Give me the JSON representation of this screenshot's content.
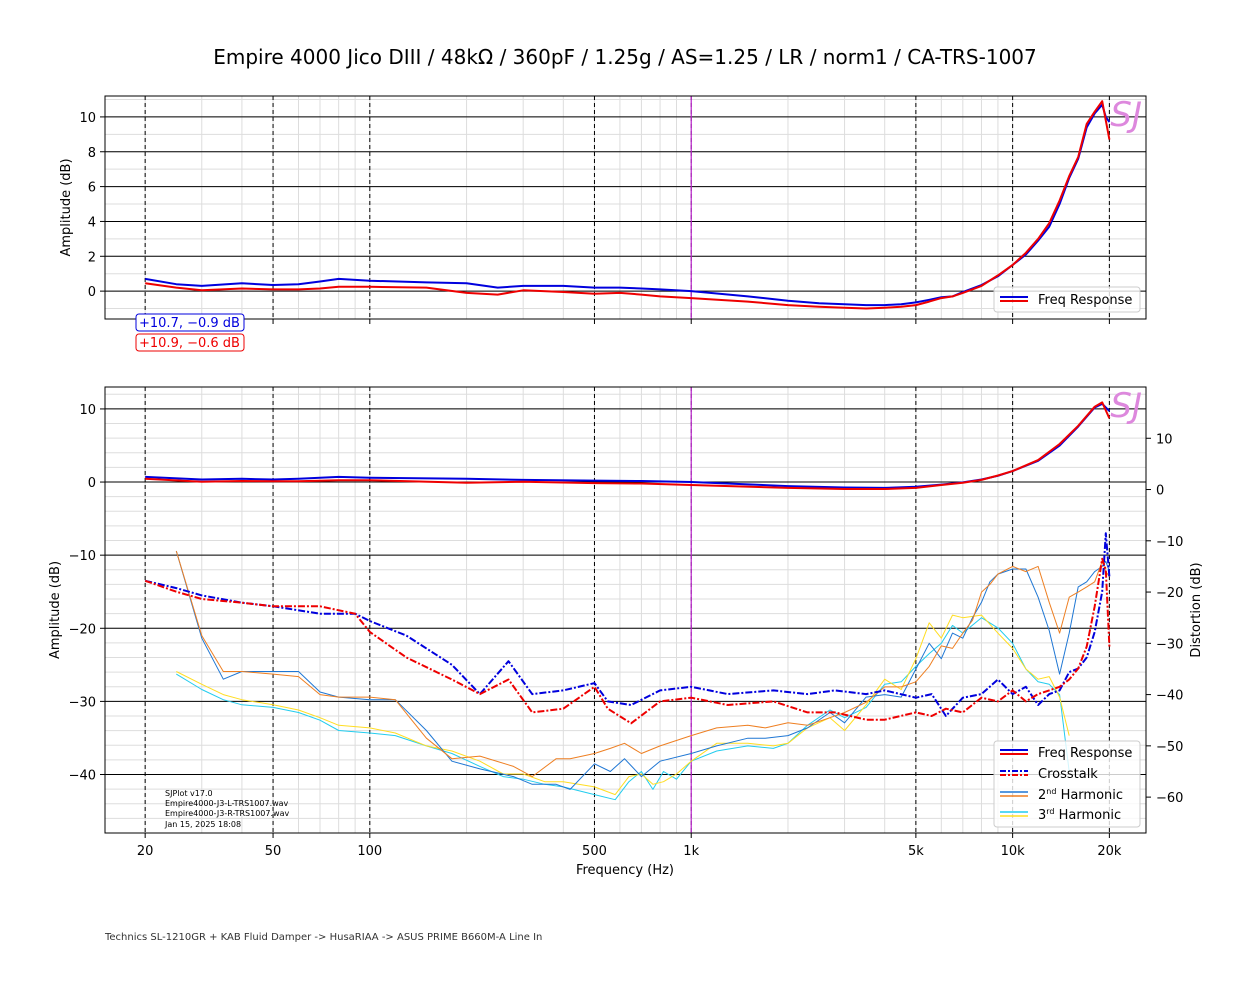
{
  "title": "Empire 4000 Jico DIII / 48kΩ / 360pF / 1.25g / AS=1.25 / LR / norm1 / CA-TRS-1007",
  "footer": "Technics SL-1210GR + KAB Fluid Damper -> HusaRIAA -> ASUS PRIME B660M-A Line In",
  "watermark": "SJ",
  "info": [
    "SJPlot v17.0",
    "Empire4000-J3-L-TRS1007.wav",
    "Empire4000-J3-R-TRS1007.wav",
    "Jan 15, 2025 18:08"
  ],
  "colors": {
    "left": "#0000dd",
    "right": "#ee0000",
    "h2_left": "#1f77d4",
    "h2_right": "#ee7f22",
    "h3_left": "#22ccee",
    "h3_right": "#ffdd22",
    "marker": "#bb22cc",
    "watermark": "#dd88dd"
  },
  "chart_data": [
    {
      "type": "line",
      "ylabel": "Amplitude (dB)",
      "xscale": "log",
      "xlim": [
        15,
        26000
      ],
      "ylim": [
        -1.6,
        11.2
      ],
      "yticks": [
        0,
        2,
        4,
        6,
        8,
        10
      ],
      "xticks": [
        20,
        50,
        100,
        500,
        1000,
        5000,
        10000,
        20000
      ],
      "xtick_labels": [
        "20",
        "50",
        "100",
        "500",
        "1k",
        "5k",
        "10k",
        "20k"
      ],
      "marker_x": 1000,
      "legend": [
        "Freq Response"
      ],
      "legend_position": "lower-right",
      "peak_labels": [
        "+10.7, −0.9 dB",
        "+10.9, −0.6 dB"
      ],
      "series": [
        {
          "name": "Freq Response",
          "channel": "L",
          "x": [
            20,
            25,
            30,
            40,
            50,
            60,
            70,
            80,
            100,
            150,
            200,
            250,
            300,
            400,
            500,
            600,
            700,
            800,
            1000,
            1500,
            2000,
            2500,
            3000,
            3500,
            4000,
            4500,
            5000,
            5500,
            6000,
            6500,
            7000,
            8000,
            9000,
            10000,
            11000,
            12000,
            13000,
            14000,
            15000,
            16000,
            17000,
            18000,
            19000,
            19500,
            20000
          ],
          "y": [
            0.7,
            0.4,
            0.3,
            0.45,
            0.35,
            0.4,
            0.55,
            0.7,
            0.6,
            0.5,
            0.45,
            0.2,
            0.3,
            0.3,
            0.2,
            0.2,
            0.15,
            0.1,
            0.0,
            -0.3,
            -0.55,
            -0.7,
            -0.75,
            -0.8,
            -0.8,
            -0.75,
            -0.65,
            -0.5,
            -0.35,
            -0.3,
            -0.05,
            0.35,
            0.85,
            1.5,
            2.1,
            2.9,
            3.7,
            5.0,
            6.5,
            7.6,
            9.4,
            10.2,
            10.7,
            10.0,
            9.7
          ]
        },
        {
          "name": "Freq Response",
          "channel": "R",
          "x": [
            20,
            25,
            30,
            40,
            50,
            60,
            70,
            80,
            100,
            150,
            200,
            250,
            300,
            400,
            500,
            600,
            700,
            800,
            1000,
            1500,
            2000,
            2500,
            3000,
            3500,
            4000,
            4500,
            5000,
            5500,
            6000,
            6500,
            7000,
            8000,
            9000,
            10000,
            11000,
            12000,
            13000,
            14000,
            15000,
            16000,
            17000,
            18000,
            19000,
            19500,
            20000
          ],
          "y": [
            0.45,
            0.2,
            0.05,
            0.15,
            0.1,
            0.1,
            0.15,
            0.25,
            0.25,
            0.2,
            -0.1,
            -0.2,
            0.05,
            -0.05,
            -0.15,
            -0.1,
            -0.2,
            -0.3,
            -0.4,
            -0.6,
            -0.8,
            -0.9,
            -0.95,
            -1.0,
            -0.95,
            -0.9,
            -0.8,
            -0.6,
            -0.4,
            -0.3,
            -0.1,
            0.3,
            0.9,
            1.5,
            2.2,
            3.0,
            3.9,
            5.2,
            6.6,
            7.7,
            9.6,
            10.3,
            10.9,
            9.8,
            8.7
          ]
        }
      ]
    },
    {
      "type": "line",
      "ylabel": "Amplitude (dB)",
      "y2label": "Distortion (dB)",
      "xlabel": "Frequency (Hz)",
      "xscale": "log",
      "xlim": [
        15,
        26000
      ],
      "ylim": [
        -48,
        13
      ],
      "yticks": [
        -40,
        -30,
        -20,
        -10,
        0,
        10
      ],
      "y2lim": [
        -67,
        20
      ],
      "y2ticks": [
        -60,
        -50,
        -40,
        -30,
        -20,
        -10,
        0,
        10
      ],
      "xticks": [
        20,
        50,
        100,
        500,
        1000,
        5000,
        10000,
        20000
      ],
      "xtick_labels": [
        "20",
        "50",
        "100",
        "500",
        "1k",
        "5k",
        "10k",
        "20k"
      ],
      "marker_x": 1000,
      "legend": [
        "Freq Response",
        "Crosstalk",
        "2nd Harmonic",
        "3rd Harmonic"
      ],
      "legend_position": "lower-right",
      "series": [
        {
          "name": "Freq Response",
          "channel": "L",
          "axis": "left",
          "x": [
            20,
            30,
            40,
            50,
            60,
            80,
            100,
            200,
            300,
            500,
            700,
            1000,
            2000,
            3000,
            4000,
            5000,
            6000,
            7000,
            8000,
            9000,
            10000,
            12000,
            14000,
            16000,
            18000,
            19000,
            20000
          ],
          "y": [
            0.7,
            0.35,
            0.45,
            0.35,
            0.45,
            0.7,
            0.6,
            0.45,
            0.3,
            0.2,
            0.15,
            0.0,
            -0.55,
            -0.75,
            -0.8,
            -0.65,
            -0.35,
            -0.05,
            0.35,
            0.85,
            1.5,
            2.9,
            5.0,
            7.6,
            10.2,
            10.7,
            9.7
          ]
        },
        {
          "name": "Freq Response",
          "channel": "R",
          "axis": "left",
          "x": [
            20,
            30,
            40,
            50,
            60,
            80,
            100,
            200,
            300,
            500,
            700,
            1000,
            2000,
            3000,
            4000,
            5000,
            6000,
            7000,
            8000,
            9000,
            10000,
            12000,
            14000,
            16000,
            18000,
            19000,
            20000
          ],
          "y": [
            0.45,
            0.05,
            0.15,
            0.1,
            0.1,
            0.25,
            0.25,
            -0.1,
            0.05,
            -0.15,
            -0.2,
            -0.4,
            -0.8,
            -0.95,
            -0.95,
            -0.8,
            -0.4,
            -0.1,
            0.3,
            0.9,
            1.5,
            3.0,
            5.2,
            7.7,
            10.3,
            10.9,
            8.7
          ]
        },
        {
          "name": "Crosstalk",
          "channel": "L",
          "axis": "left",
          "x": [
            20,
            25,
            30,
            40,
            50,
            70,
            90,
            100,
            130,
            180,
            220,
            270,
            320,
            400,
            500,
            550,
            650,
            800,
            1000,
            1300,
            1800,
            2300,
            2800,
            3500,
            4000,
            5000,
            5600,
            6200,
            7000,
            8000,
            9000,
            10000,
            11000,
            12000,
            13000,
            14000,
            15000,
            16000,
            17000,
            18000,
            19000,
            19500,
            20000
          ],
          "y": [
            -13.5,
            -14.5,
            -15.5,
            -16.5,
            -17,
            -18,
            -18,
            -19,
            -21,
            -25,
            -29,
            -24.5,
            -29,
            -28.5,
            -27.5,
            -30,
            -30.5,
            -28.5,
            -28,
            -29,
            -28.5,
            -29,
            -28.5,
            -29,
            -28.5,
            -29.5,
            -29,
            -32,
            -29.5,
            -29,
            -27,
            -29,
            -28,
            -30.5,
            -29,
            -28.5,
            -26,
            -25.5,
            -24,
            -20.5,
            -15,
            -7,
            -13
          ]
        },
        {
          "name": "Crosstalk",
          "channel": "R",
          "axis": "left",
          "x": [
            20,
            25,
            30,
            40,
            50,
            70,
            90,
            100,
            130,
            180,
            220,
            270,
            320,
            400,
            500,
            550,
            650,
            800,
            1000,
            1300,
            1800,
            2300,
            2800,
            3500,
            4000,
            5000,
            5600,
            6200,
            7000,
            8000,
            9000,
            10000,
            11000,
            12000,
            13000,
            14000,
            15000,
            16000,
            17000,
            18000,
            19000,
            19500,
            20000
          ],
          "y": [
            -13.5,
            -15,
            -16,
            -16.5,
            -17,
            -17,
            -18,
            -20.5,
            -24,
            -27,
            -29,
            -27,
            -31.5,
            -31,
            -28,
            -31,
            -33,
            -30,
            -29.5,
            -30.5,
            -30,
            -31.5,
            -31.5,
            -32.5,
            -32.5,
            -31.5,
            -32,
            -31,
            -31.5,
            -29.5,
            -30,
            -28.5,
            -30,
            -29,
            -28.5,
            -28,
            -27,
            -25.5,
            -22.5,
            -17,
            -10.5,
            -12,
            -22.5
          ]
        },
        {
          "name": "2nd Harmonic",
          "channel": "L",
          "axis": "right",
          "x": [
            25,
            30,
            35,
            40,
            50,
            60,
            70,
            80,
            100,
            120,
            150,
            180,
            220,
            280,
            320,
            380,
            420,
            500,
            560,
            620,
            700,
            800,
            1000,
            1200,
            1500,
            1700,
            2000,
            2300,
            2700,
            3000,
            3500,
            4000,
            4500,
            5000,
            5500,
            6000,
            6500,
            7000,
            7500,
            8000,
            8500,
            9000,
            10000,
            11000,
            12000,
            13000,
            14000,
            15000,
            16000,
            17000,
            18000,
            19000,
            19500,
            20000
          ],
          "y": [
            -12,
            -29,
            -37,
            -35.5,
            -35.5,
            -35.5,
            -39.5,
            -40.5,
            -41,
            -41,
            -47,
            -53,
            -54.5,
            -56,
            -57.5,
            -57.5,
            -58.5,
            -53.5,
            -55,
            -52.5,
            -56,
            -53,
            -51.5,
            -50,
            -48.5,
            -48.5,
            -48,
            -46.5,
            -43.5,
            -45.5,
            -40.5,
            -40,
            -40.5,
            -35,
            -30,
            -33,
            -28,
            -29,
            -25,
            -22,
            -18,
            -16.5,
            -15.5,
            -15.5,
            -21,
            -27.5,
            -36,
            -28,
            -19,
            -18,
            -16,
            -15,
            -14,
            -16
          ]
        },
        {
          "name": "2nd Harmonic",
          "channel": "R",
          "axis": "right",
          "x": [
            25,
            30,
            35,
            40,
            50,
            60,
            70,
            80,
            100,
            120,
            150,
            180,
            220,
            280,
            320,
            380,
            420,
            500,
            560,
            620,
            700,
            800,
            1000,
            1200,
            1500,
            1700,
            2000,
            2300,
            2700,
            3000,
            3500,
            4000,
            4500,
            5000,
            5500,
            6000,
            6500,
            7000,
            7500,
            8000,
            8500,
            9000,
            10000,
            11000,
            12000,
            13000,
            14000,
            15000,
            16000,
            17000,
            18000,
            19000,
            19500,
            20000
          ],
          "y": [
            -12,
            -28.5,
            -35.5,
            -35.5,
            -36,
            -36.5,
            -40,
            -40.5,
            -40.5,
            -41,
            -48.5,
            -52.5,
            -52,
            -54,
            -56,
            -52.5,
            -52.5,
            -51.5,
            -50.5,
            -49.5,
            -51.5,
            -50,
            -48,
            -46.5,
            -46,
            -46.5,
            -45.5,
            -46,
            -44.5,
            -43.5,
            -41.5,
            -38.5,
            -38.5,
            -37.5,
            -34.5,
            -30.5,
            -31,
            -28,
            -25.5,
            -20,
            -18.5,
            -16.5,
            -15,
            -16,
            -15,
            -22,
            -28,
            -21,
            -20,
            -19,
            -18,
            -14,
            -16,
            -17
          ]
        },
        {
          "name": "3rd Harmonic",
          "channel": "L",
          "axis": "right",
          "x": [
            25,
            30,
            35,
            40,
            50,
            60,
            70,
            80,
            100,
            120,
            150,
            180,
            220,
            260,
            300,
            350,
            400,
            500,
            580,
            640,
            700,
            760,
            820,
            900,
            1000,
            1200,
            1500,
            1800,
            2000,
            2300,
            2700,
            3000,
            3500,
            4000,
            4500,
            5000,
            5500,
            6000,
            6500,
            7000,
            8000,
            9000,
            10000,
            11000,
            12000,
            13000,
            14000,
            15000
          ],
          "y": [
            -36,
            -39,
            -41,
            -42,
            -42.5,
            -43.5,
            -45,
            -47,
            -47.5,
            -48,
            -50,
            -51.5,
            -54,
            -56,
            -56.5,
            -57.5,
            -58,
            -59.5,
            -60.5,
            -57,
            -55,
            -58.5,
            -55,
            -56.5,
            -53,
            -51,
            -50,
            -50.5,
            -49.5,
            -46,
            -43,
            -44.5,
            -42.5,
            -38,
            -37.5,
            -34.5,
            -32,
            -30,
            -26.5,
            -28,
            -25,
            -27,
            -30,
            -35,
            -37.5,
            -38,
            -40,
            -55
          ]
        },
        {
          "name": "3rd Harmonic",
          "channel": "R",
          "axis": "right",
          "x": [
            25,
            30,
            35,
            40,
            50,
            60,
            70,
            80,
            100,
            120,
            150,
            180,
            220,
            260,
            300,
            350,
            400,
            500,
            580,
            640,
            700,
            760,
            820,
            900,
            1000,
            1200,
            1500,
            1800,
            2000,
            2300,
            2700,
            3000,
            3500,
            4000,
            4500,
            5000,
            5500,
            6000,
            6500,
            7000,
            8000,
            9000,
            10000,
            11000,
            12000,
            13000,
            14000,
            15000
          ],
          "y": [
            -35.5,
            -38,
            -40,
            -41,
            -42,
            -43,
            -44.5,
            -46,
            -46.5,
            -47.5,
            -50,
            -51,
            -53,
            -55.5,
            -55.5,
            -57,
            -57,
            -58,
            -59.5,
            -56,
            -55.5,
            -57.5,
            -57,
            -55.5,
            -53,
            -49.5,
            -49.5,
            -50,
            -49.5,
            -46.5,
            -44.5,
            -47,
            -42,
            -37,
            -39,
            -33,
            -26,
            -29,
            -24.5,
            -25,
            -24.5,
            -28,
            -31,
            -35,
            -37,
            -36.5,
            -40.5,
            -48
          ]
        }
      ]
    }
  ]
}
